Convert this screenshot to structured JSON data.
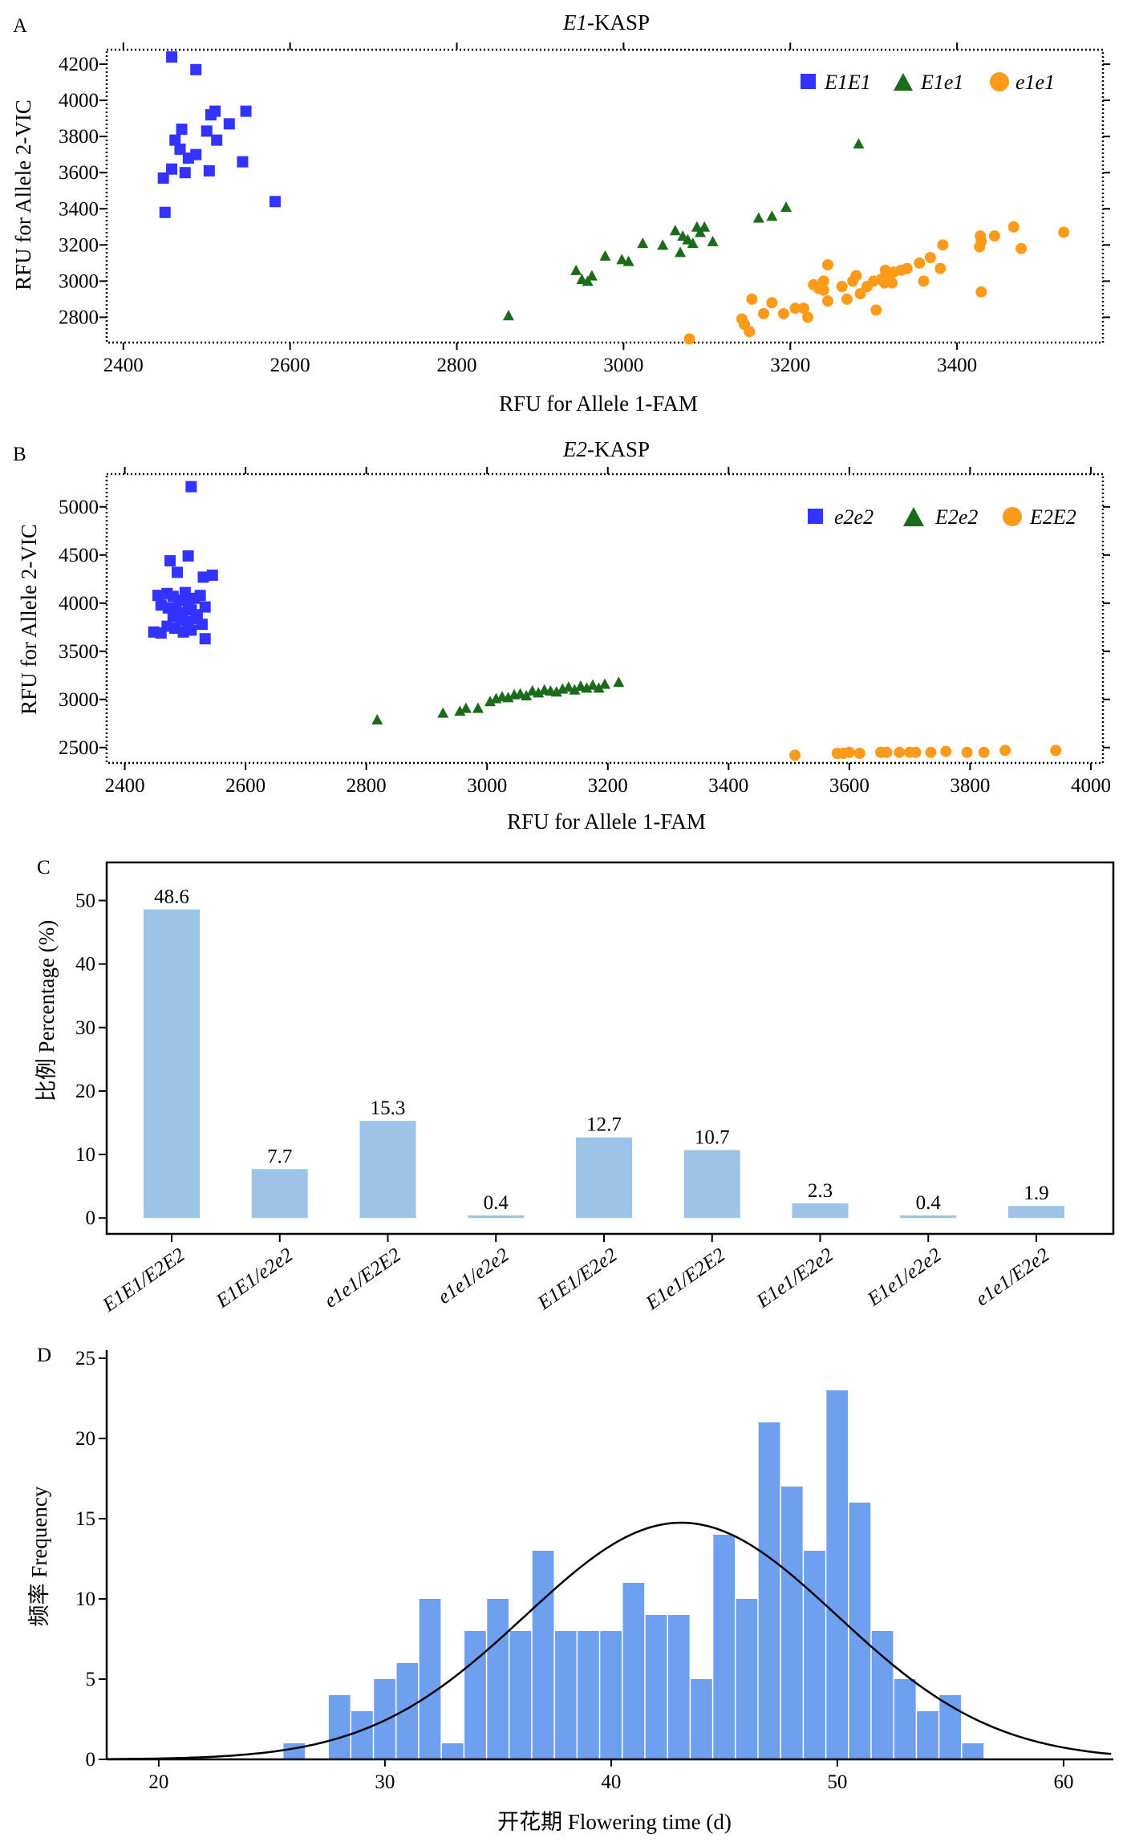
{
  "panels": {
    "A": "A",
    "B": "B",
    "C": "C",
    "D": "D"
  },
  "chart_data": [
    {
      "id": "A",
      "type": "scatter",
      "title_italic": "E1",
      "title_rest": "-KASP",
      "xlabel": "RFU for Allele 1-FAM",
      "ylabel": "RFU for Allele 2-VIC",
      "xlim": [
        2380,
        3575
      ],
      "ylim": [
        2660,
        4280
      ],
      "xticks": [
        2400,
        2600,
        2800,
        3000,
        3200,
        3400
      ],
      "yticks": [
        2800,
        3000,
        3200,
        3400,
        3600,
        3800,
        4000,
        4200
      ],
      "legend_position": "top-right",
      "series": [
        {
          "name": "E1E1",
          "marker": "square",
          "color": "#3333ff",
          "points": [
            [
              2458,
              4240
            ],
            [
              2487,
              4170
            ],
            [
              2470,
              3840
            ],
            [
              2500,
              3830
            ],
            [
              2505,
              3920
            ],
            [
              2510,
              3940
            ],
            [
              2527,
              3870
            ],
            [
              2547,
              3940
            ],
            [
              2462,
              3780
            ],
            [
              2468,
              3730
            ],
            [
              2478,
              3680
            ],
            [
              2487,
              3700
            ],
            [
              2512,
              3780
            ],
            [
              2458,
              3620
            ],
            [
              2474,
              3600
            ],
            [
              2503,
              3610
            ],
            [
              2543,
              3660
            ],
            [
              2448,
              3570
            ],
            [
              2450,
              3380
            ],
            [
              2582,
              3440
            ]
          ]
        },
        {
          "name": "E1e1",
          "marker": "triangle",
          "color": "#1a6b1a",
          "points": [
            [
              2862,
              2810
            ],
            [
              2943,
              3060
            ],
            [
              2950,
              3010
            ],
            [
              2957,
              3000
            ],
            [
              2962,
              3030
            ],
            [
              2978,
              3140
            ],
            [
              2998,
              3120
            ],
            [
              3006,
              3110
            ],
            [
              3023,
              3210
            ],
            [
              3047,
              3200
            ],
            [
              3062,
              3280
            ],
            [
              3068,
              3160
            ],
            [
              3071,
              3250
            ],
            [
              3077,
              3230
            ],
            [
              3083,
              3210
            ],
            [
              3088,
              3300
            ],
            [
              3092,
              3270
            ],
            [
              3097,
              3300
            ],
            [
              3107,
              3220
            ],
            [
              3162,
              3350
            ],
            [
              3178,
              3360
            ],
            [
              3195,
              3410
            ],
            [
              3282,
              3760
            ]
          ]
        },
        {
          "name": "e1e1",
          "marker": "circle",
          "color": "#ff9a1a",
          "points": [
            [
              3079,
              2680
            ],
            [
              3142,
              2790
            ],
            [
              3145,
              2760
            ],
            [
              3151,
              2720
            ],
            [
              3154,
              2900
            ],
            [
              3168,
              2820
            ],
            [
              3178,
              2880
            ],
            [
              3192,
              2820
            ],
            [
              3206,
              2850
            ],
            [
              3216,
              2850
            ],
            [
              3221,
              2800
            ],
            [
              3228,
              2980
            ],
            [
              3234,
              2960
            ],
            [
              3240,
              2950
            ],
            [
              3240,
              3000
            ],
            [
              3245,
              2890
            ],
            [
              3245,
              3090
            ],
            [
              3262,
              2970
            ],
            [
              3268,
              2900
            ],
            [
              3275,
              3000
            ],
            [
              3279,
              3030
            ],
            [
              3284,
              2930
            ],
            [
              3292,
              2970
            ],
            [
              3300,
              3000
            ],
            [
              3303,
              2840
            ],
            [
              3309,
              3010
            ],
            [
              3313,
              2990
            ],
            [
              3314,
              3060
            ],
            [
              3318,
              3020
            ],
            [
              3322,
              2990
            ],
            [
              3324,
              3050
            ],
            [
              3333,
              3060
            ],
            [
              3340,
              3070
            ],
            [
              3355,
              3100
            ],
            [
              3360,
              3000
            ],
            [
              3368,
              3130
            ],
            [
              3380,
              3070
            ],
            [
              3383,
              3200
            ],
            [
              3427,
              3190
            ],
            [
              3428,
              3250
            ],
            [
              3429,
              3220
            ],
            [
              3429,
              2940
            ],
            [
              3445,
              3250
            ],
            [
              3468,
              3300
            ],
            [
              3477,
              3180
            ],
            [
              3528,
              3270
            ]
          ]
        }
      ]
    },
    {
      "id": "B",
      "type": "scatter",
      "title_italic": "E2",
      "title_rest": "-KASP",
      "xlabel": "RFU for Allele 1-FAM",
      "ylabel": "RFU for Allele 2-VIC",
      "xlim": [
        2370,
        4020
      ],
      "ylim": [
        2340,
        5340
      ],
      "xticks": [
        2400,
        2600,
        2800,
        3000,
        3200,
        3400,
        3600,
        3800,
        4000
      ],
      "yticks": [
        2500,
        3000,
        3500,
        4000,
        4500,
        5000
      ],
      "legend_position": "top-right",
      "series": [
        {
          "name": "e2e2",
          "marker": "square",
          "color": "#3333ff",
          "points": [
            [
              2510,
              5210
            ],
            [
              2505,
              4490
            ],
            [
              2475,
              4440
            ],
            [
              2487,
              4320
            ],
            [
              2545,
              4290
            ],
            [
              2530,
              4270
            ],
            [
              2455,
              4080
            ],
            [
              2470,
              4100
            ],
            [
              2480,
              4070
            ],
            [
              2490,
              4030
            ],
            [
              2500,
              4110
            ],
            [
              2505,
              4000
            ],
            [
              2515,
              4050
            ],
            [
              2525,
              4080
            ],
            [
              2460,
              3980
            ],
            [
              2472,
              3950
            ],
            [
              2485,
              3920
            ],
            [
              2495,
              3900
            ],
            [
              2510,
              3930
            ],
            [
              2520,
              3880
            ],
            [
              2533,
              3960
            ],
            [
              2480,
              3860
            ],
            [
              2492,
              3820
            ],
            [
              2505,
              3810
            ],
            [
              2518,
              3840
            ],
            [
              2528,
              3780
            ],
            [
              2470,
              3760
            ],
            [
              2483,
              3740
            ],
            [
              2497,
              3700
            ],
            [
              2510,
              3720
            ],
            [
              2448,
              3700
            ],
            [
              2460,
              3690
            ],
            [
              2533,
              3630
            ]
          ]
        },
        {
          "name": "E2e2",
          "marker": "triangle",
          "color": "#1a6b1a",
          "points": [
            [
              2818,
              2790
            ],
            [
              2927,
              2860
            ],
            [
              2955,
              2880
            ],
            [
              2965,
              2910
            ],
            [
              2985,
              2910
            ],
            [
              3005,
              2980
            ],
            [
              3015,
              3010
            ],
            [
              3025,
              3030
            ],
            [
              3035,
              3020
            ],
            [
              3045,
              3050
            ],
            [
              3055,
              3060
            ],
            [
              3065,
              3040
            ],
            [
              3075,
              3090
            ],
            [
              3085,
              3070
            ],
            [
              3095,
              3100
            ],
            [
              3105,
              3090
            ],
            [
              3115,
              3080
            ],
            [
              3125,
              3110
            ],
            [
              3135,
              3130
            ],
            [
              3145,
              3100
            ],
            [
              3155,
              3140
            ],
            [
              3165,
              3120
            ],
            [
              3175,
              3150
            ],
            [
              3185,
              3120
            ],
            [
              3195,
              3160
            ],
            [
              3218,
              3180
            ]
          ]
        },
        {
          "name": "E2E2",
          "marker": "circle",
          "color": "#ff9a1a",
          "points": [
            [
              3510,
              2420
            ],
            [
              3580,
              2440
            ],
            [
              3590,
              2440
            ],
            [
              3600,
              2450
            ],
            [
              3617,
              2440
            ],
            [
              3652,
              2450
            ],
            [
              3662,
              2450
            ],
            [
              3683,
              2450
            ],
            [
              3700,
              2450
            ],
            [
              3710,
              2450
            ],
            [
              3735,
              2450
            ],
            [
              3760,
              2460
            ],
            [
              3795,
              2450
            ],
            [
              3823,
              2450
            ],
            [
              3858,
              2470
            ],
            [
              3942,
              2470
            ]
          ]
        }
      ]
    },
    {
      "id": "C",
      "type": "bar",
      "ylabel": "比例 Percentage (%)",
      "ylim": [
        -2.5,
        56
      ],
      "yticks": [
        0,
        10,
        20,
        30,
        40,
        50
      ],
      "categories": [
        "E1E1/E2E2",
        "E1E1/e2e2",
        "e1e1/E2E2",
        "e1e1/e2e2",
        "E1E1/E2e2",
        "E1e1/E2E2",
        "E1e1/E2e2",
        "E1e1/e2e2",
        "e1e1/E2e2"
      ],
      "values": [
        48.6,
        7.7,
        15.3,
        0.4,
        12.7,
        10.7,
        2.3,
        0.4,
        1.9
      ],
      "labels": [
        "48.6",
        "7.7",
        "15.3",
        "0.4",
        "12.7",
        "10.7",
        "2.3",
        "0.4",
        "1.9"
      ],
      "color": "#9dc3e6"
    },
    {
      "id": "D",
      "type": "bar",
      "subtype": "histogram",
      "xlabel": "开花期 Flowering time (d)",
      "ylabel": "频率 Frequency",
      "xlim": [
        17.7,
        62.2
      ],
      "ylim": [
        0,
        25.5
      ],
      "xticks": [
        20,
        30,
        40,
        50,
        60
      ],
      "yticks": [
        0,
        5,
        10,
        15,
        20,
        25
      ],
      "bin_width": 1,
      "bins": [
        [
          25.5,
          1
        ],
        [
          26.5,
          0
        ],
        [
          27.5,
          4
        ],
        [
          28.5,
          3
        ],
        [
          29.5,
          5
        ],
        [
          30.5,
          6
        ],
        [
          31.5,
          10
        ],
        [
          32.5,
          1
        ],
        [
          33.5,
          8
        ],
        [
          34.5,
          10
        ],
        [
          35.5,
          8
        ],
        [
          36.5,
          13
        ],
        [
          37.5,
          8
        ],
        [
          38.5,
          8
        ],
        [
          39.5,
          8
        ],
        [
          40.5,
          11
        ],
        [
          41.5,
          9
        ],
        [
          42.5,
          9
        ],
        [
          43.5,
          5
        ],
        [
          44.5,
          14
        ],
        [
          45.5,
          10
        ],
        [
          46.5,
          21
        ],
        [
          47.5,
          17
        ],
        [
          48.5,
          13
        ],
        [
          49.5,
          23
        ],
        [
          50.5,
          16
        ],
        [
          51.5,
          8
        ],
        [
          52.5,
          5
        ],
        [
          53.5,
          3
        ],
        [
          54.5,
          4
        ],
        [
          55.5,
          1
        ]
      ],
      "curve": {
        "type": "normal",
        "mean": 43.1,
        "sd": 6.9,
        "peak": 14.75
      },
      "color": "#6fa0f0"
    }
  ]
}
